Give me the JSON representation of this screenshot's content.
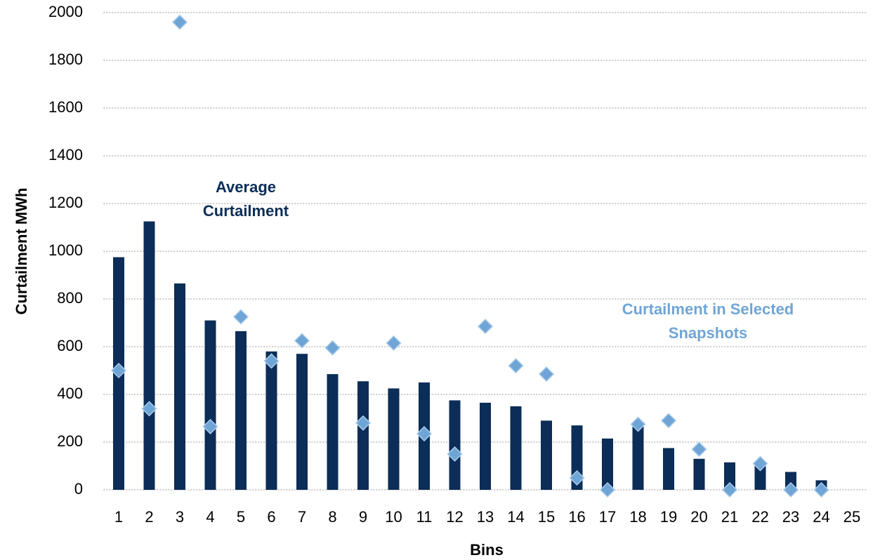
{
  "chart_data": {
    "type": "bar",
    "x_label": "Bins",
    "y_label": "Curtailment MWh",
    "categories": [
      "1",
      "2",
      "3",
      "4",
      "5",
      "6",
      "7",
      "8",
      "9",
      "10",
      "11",
      "12",
      "13",
      "14",
      "15",
      "16",
      "17",
      "18",
      "19",
      "20",
      "21",
      "22",
      "23",
      "24",
      "25"
    ],
    "series": [
      {
        "name": "Average Curtailment",
        "type": "bar",
        "color": "#0b2d57",
        "values": [
          975,
          1125,
          865,
          710,
          665,
          580,
          570,
          485,
          455,
          425,
          450,
          375,
          365,
          350,
          290,
          270,
          215,
          265,
          175,
          130,
          115,
          100,
          75,
          40,
          null
        ]
      },
      {
        "name": "Curtailment in Selected Snapshots",
        "type": "scatter",
        "color": "#6fa5d6",
        "values": [
          500,
          340,
          1960,
          265,
          725,
          540,
          625,
          595,
          280,
          615,
          235,
          150,
          685,
          520,
          485,
          50,
          0,
          275,
          290,
          170,
          0,
          110,
          0,
          0,
          null
        ]
      }
    ],
    "ylim": [
      0,
      2000
    ],
    "yticks": [
      0,
      200,
      400,
      600,
      800,
      1000,
      1200,
      1400,
      1600,
      1800,
      2000
    ],
    "grid": true
  }
}
